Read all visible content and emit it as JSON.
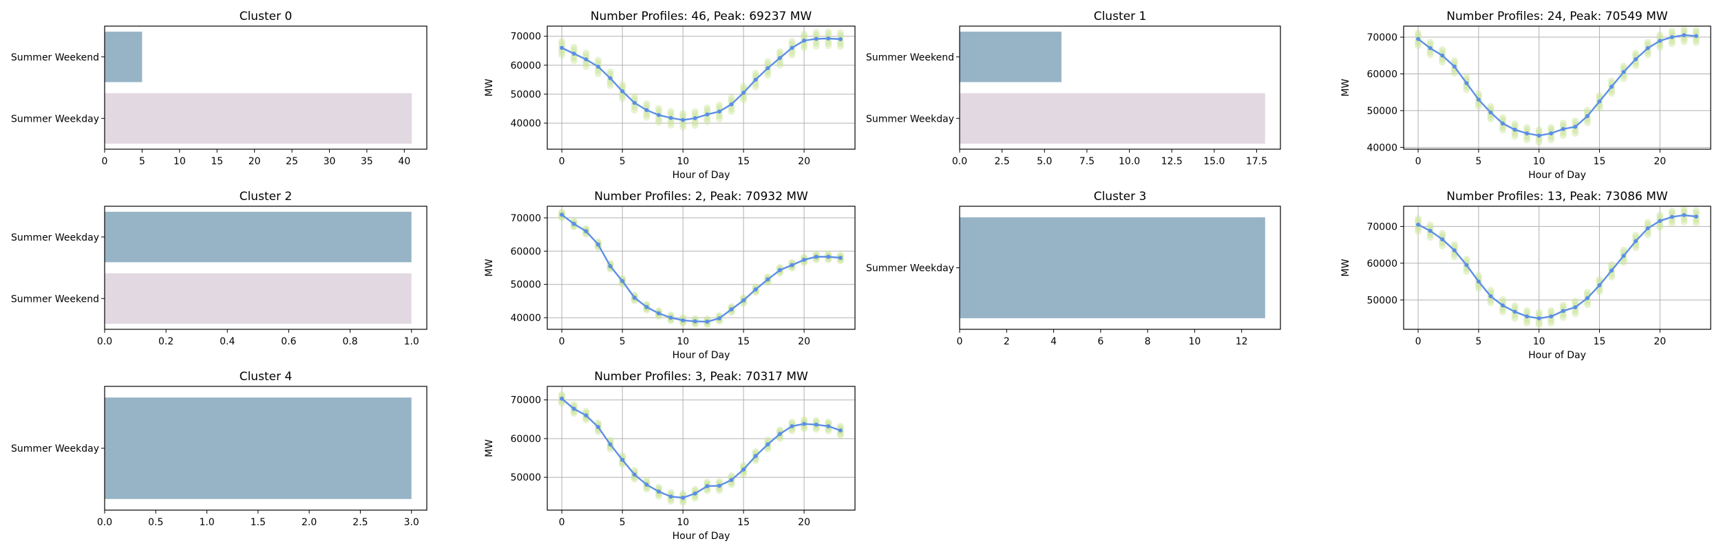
{
  "colors": {
    "bar_first": "#97b4c6",
    "bar_second": "#e2d8e2",
    "mean_line": "#5b8fe6",
    "profile_scatter": "#c9e59a",
    "grid": "#b0b0b0",
    "axis": "#000000"
  },
  "chart_data": [
    {
      "type": "bar",
      "orientation": "horizontal",
      "title": "Cluster 0",
      "categories": [
        "Summer Weekend",
        "Summer Weekday"
      ],
      "values": [
        5,
        41
      ],
      "xlim": [
        0,
        43
      ],
      "xticks": [
        0,
        5,
        10,
        15,
        20,
        25,
        30,
        35,
        40
      ],
      "xtick_labels": [
        "0",
        "5",
        "10",
        "15",
        "20",
        "25",
        "30",
        "35",
        "40"
      ]
    },
    {
      "type": "line",
      "title": "Number Profiles: 46, Peak: 69237 MW",
      "xlabel": "Hour of Day",
      "ylabel": "MW",
      "xlim": [
        -1.2,
        24.2
      ],
      "ylim": [
        31000,
        73500
      ],
      "xticks": [
        0,
        5,
        10,
        15,
        20
      ],
      "yticks": [
        40000,
        50000,
        60000,
        70000
      ],
      "grid": true,
      "profile_spread": 2500,
      "x": [
        0,
        1,
        2,
        3,
        4,
        5,
        6,
        7,
        8,
        9,
        10,
        11,
        12,
        13,
        14,
        15,
        16,
        17,
        18,
        19,
        20,
        21,
        22,
        23
      ],
      "y": [
        66000,
        64000,
        62000,
        59500,
        55500,
        51000,
        47000,
        44500,
        42800,
        41800,
        41100,
        41700,
        43000,
        44000,
        46500,
        50500,
        55000,
        59000,
        62500,
        66000,
        68500,
        69100,
        69237,
        69000
      ]
    },
    {
      "type": "bar",
      "orientation": "horizontal",
      "title": "Cluster 1",
      "categories": [
        "Summer Weekend",
        "Summer Weekday"
      ],
      "values": [
        6,
        18
      ],
      "xlim": [
        0,
        18.9
      ],
      "xticks": [
        0,
        2.5,
        5,
        7.5,
        10,
        12.5,
        15,
        17.5
      ],
      "xtick_labels": [
        "0.0",
        "2.5",
        "5.0",
        "7.5",
        "10.0",
        "12.5",
        "15.0",
        "17.5"
      ]
    },
    {
      "type": "line",
      "title": "Number Profiles: 24, Peak: 70549 MW",
      "xlabel": "Hour of Day",
      "ylabel": "MW",
      "xlim": [
        -1.2,
        24.2
      ],
      "ylim": [
        39500,
        73000
      ],
      "xticks": [
        0,
        5,
        10,
        15,
        20
      ],
      "yticks": [
        40000,
        50000,
        60000,
        70000
      ],
      "grid": true,
      "profile_spread": 1800,
      "x": [
        0,
        1,
        2,
        3,
        4,
        5,
        6,
        7,
        8,
        9,
        10,
        11,
        12,
        13,
        14,
        15,
        16,
        17,
        18,
        19,
        20,
        21,
        22,
        23
      ],
      "y": [
        69500,
        67000,
        65000,
        62000,
        57500,
        53000,
        49500,
        46500,
        44800,
        43800,
        43200,
        43800,
        45000,
        45600,
        48500,
        52500,
        56500,
        60500,
        64000,
        67000,
        69000,
        70000,
        70549,
        70300
      ]
    },
    {
      "type": "bar",
      "orientation": "horizontal",
      "title": "Cluster 2",
      "categories": [
        "Summer Weekday",
        "Summer Weekend"
      ],
      "values": [
        1,
        1
      ],
      "xlim": [
        0,
        1.05
      ],
      "xticks": [
        0,
        0.2,
        0.4,
        0.6,
        0.8,
        1.0
      ],
      "xtick_labels": [
        "0.0",
        "0.2",
        "0.4",
        "0.6",
        "0.8",
        "1.0"
      ]
    },
    {
      "type": "line",
      "title": "Number Profiles: 2, Peak: 70932 MW",
      "xlabel": "Hour of Day",
      "ylabel": "MW",
      "xlim": [
        -1.2,
        24.2
      ],
      "ylim": [
        36500,
        73500
      ],
      "xticks": [
        0,
        5,
        10,
        15,
        20
      ],
      "yticks": [
        40000,
        50000,
        60000,
        70000
      ],
      "grid": true,
      "profile_spread": 900,
      "x": [
        0,
        1,
        2,
        3,
        4,
        5,
        6,
        7,
        8,
        9,
        10,
        11,
        12,
        13,
        14,
        15,
        16,
        17,
        18,
        19,
        20,
        21,
        22,
        23
      ],
      "y": [
        70932,
        68200,
        66000,
        62000,
        55500,
        51000,
        46000,
        43200,
        41300,
        40000,
        39200,
        38900,
        38800,
        39800,
        42500,
        45200,
        48500,
        51500,
        54300,
        55800,
        57400,
        58300,
        58300,
        58000
      ]
    },
    {
      "type": "bar",
      "orientation": "horizontal",
      "title": "Cluster 3",
      "categories": [
        "Summer Weekday"
      ],
      "values": [
        13
      ],
      "xlim": [
        0,
        13.65
      ],
      "xticks": [
        0,
        2,
        4,
        6,
        8,
        10,
        12
      ],
      "xtick_labels": [
        "0",
        "2",
        "4",
        "6",
        "8",
        "10",
        "12"
      ]
    },
    {
      "type": "line",
      "title": "Number Profiles: 13, Peak: 73086 MW",
      "xlabel": "Hour of Day",
      "ylabel": "MW",
      "xlim": [
        -1.2,
        24.2
      ],
      "ylim": [
        42000,
        75500
      ],
      "xticks": [
        0,
        5,
        10,
        15,
        20
      ],
      "yticks": [
        50000,
        60000,
        70000
      ],
      "grid": true,
      "profile_spread": 1800,
      "x": [
        0,
        1,
        2,
        3,
        4,
        5,
        6,
        7,
        8,
        9,
        10,
        11,
        12,
        13,
        14,
        15,
        16,
        17,
        18,
        19,
        20,
        21,
        22,
        23
      ],
      "y": [
        70500,
        68800,
        66500,
        63500,
        59500,
        55000,
        51000,
        48500,
        46800,
        45500,
        45000,
        45500,
        47000,
        48000,
        50500,
        54000,
        58000,
        62000,
        66000,
        69500,
        71500,
        72600,
        73086,
        72700
      ]
    },
    {
      "type": "bar",
      "orientation": "horizontal",
      "title": "Cluster 4",
      "categories": [
        "Summer Weekday"
      ],
      "values": [
        3
      ],
      "xlim": [
        0,
        3.15
      ],
      "xticks": [
        0,
        0.5,
        1.0,
        1.5,
        2.0,
        2.5,
        3.0
      ],
      "xtick_labels": [
        "0.0",
        "0.5",
        "1.0",
        "1.5",
        "2.0",
        "2.5",
        "3.0"
      ]
    },
    {
      "type": "line",
      "title": "Number Profiles: 3, Peak: 70317 MW",
      "xlabel": "Hour of Day",
      "ylabel": "MW",
      "xlim": [
        -1.2,
        24.2
      ],
      "ylim": [
        41500,
        73500
      ],
      "xticks": [
        0,
        5,
        10,
        15,
        20
      ],
      "yticks": [
        50000,
        60000,
        70000
      ],
      "grid": true,
      "profile_spread": 1200,
      "x": [
        0,
        1,
        2,
        3,
        4,
        5,
        6,
        7,
        8,
        9,
        10,
        11,
        12,
        13,
        14,
        15,
        16,
        17,
        18,
        19,
        20,
        21,
        22,
        23
      ],
      "y": [
        70317,
        67700,
        66000,
        63000,
        58500,
        54500,
        50700,
        48100,
        46300,
        45000,
        44700,
        45800,
        47700,
        47800,
        49300,
        52000,
        55500,
        58500,
        61200,
        63200,
        63800,
        63600,
        63200,
        62100
      ]
    }
  ]
}
